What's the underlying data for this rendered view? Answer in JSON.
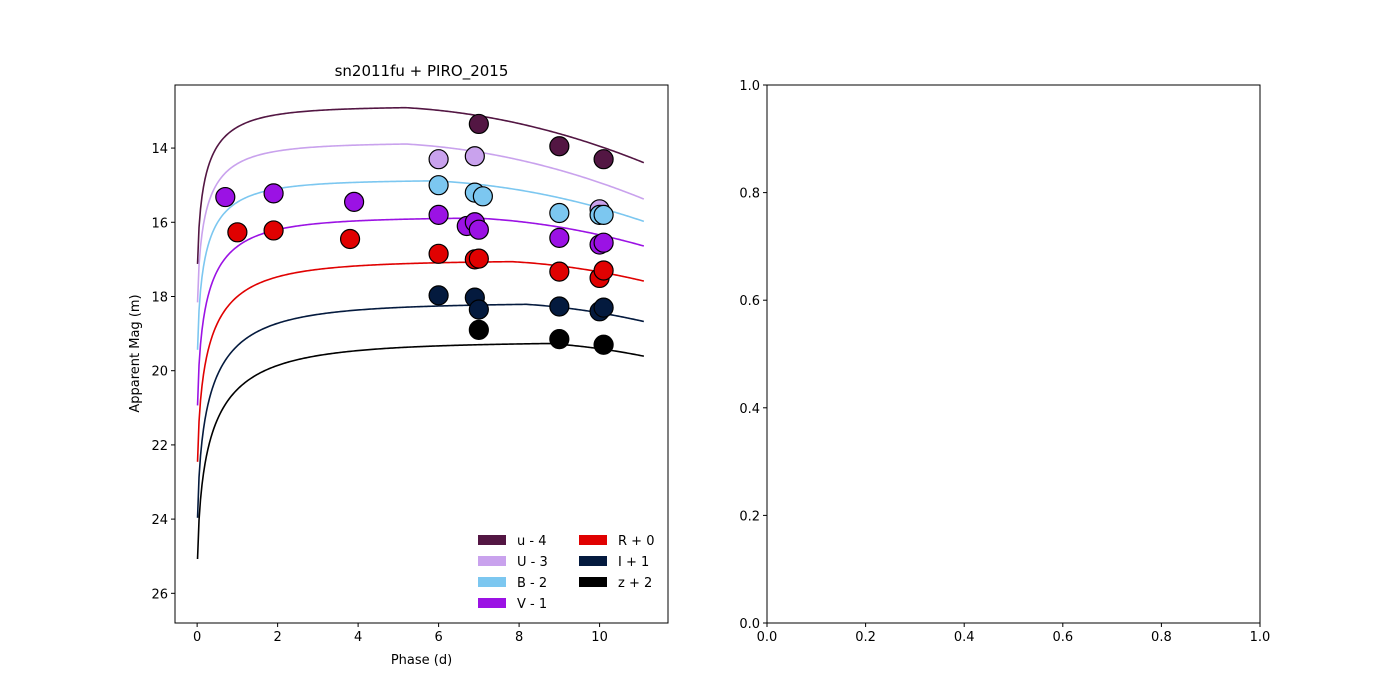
{
  "chart_data": [
    {
      "type": "scatter",
      "title": "sn2011fu + PIRO_2015",
      "xlabel": "Phase (d)",
      "ylabel": "Apparent Mag (m)",
      "xlim": [
        -0.55,
        11.7
      ],
      "ylim": [
        26.8,
        12.3
      ],
      "y_inverted": true,
      "xticks": [
        0,
        2,
        4,
        6,
        8,
        10
      ],
      "yticks": [
        14,
        16,
        18,
        20,
        22,
        24,
        26
      ],
      "legend_placement": "lower right",
      "legend_columns": 2,
      "series": [
        {
          "name": "u - 4",
          "color": "#531643",
          "points": [
            [
              7.0,
              13.35
            ],
            [
              9.0,
              13.95
            ],
            [
              10.1,
              14.3
            ]
          ],
          "model": {
            "m0": 18.2,
            "mpeak": 12.88,
            "tpeak": 4.2,
            "rise": 0.5,
            "decline": 0.053
          }
        },
        {
          "name": "U - 3",
          "color": "#c9a2ed",
          "points": [
            [
              6.0,
              14.3
            ],
            [
              6.9,
              14.22
            ],
            [
              10.0,
              15.65
            ]
          ],
          "model": {
            "m0": 19.25,
            "mpeak": 13.86,
            "tpeak": 4.2,
            "rise": 0.5,
            "decline": 0.053
          }
        },
        {
          "name": "B - 2",
          "color": "#7cc7f0",
          "points": [
            [
              6.0,
              15.0
            ],
            [
              6.9,
              15.2
            ],
            [
              7.1,
              15.3
            ],
            [
              9.0,
              15.75
            ],
            [
              10.0,
              15.8
            ],
            [
              10.1,
              15.8
            ]
          ],
          "model": {
            "m0": 20.6,
            "mpeak": 14.86,
            "tpeak": 5.0,
            "rise": 0.5,
            "decline": 0.05
          }
        },
        {
          "name": "V - 1",
          "color": "#9b12e4",
          "points": [
            [
              0.7,
              15.32
            ],
            [
              1.9,
              15.22
            ],
            [
              3.9,
              15.45
            ],
            [
              6.0,
              15.8
            ],
            [
              6.7,
              16.1
            ],
            [
              6.9,
              16.0
            ],
            [
              7.0,
              16.2
            ],
            [
              9.0,
              16.42
            ],
            [
              10.0,
              16.6
            ],
            [
              10.1,
              16.55
            ]
          ],
          "model": {
            "m0": 22.1,
            "mpeak": 15.86,
            "tpeak": 6.0,
            "rise": 0.6,
            "decline": 0.05
          }
        },
        {
          "name": "R + 0",
          "color": "#e00101",
          "points": [
            [
              1.0,
              16.27
            ],
            [
              1.9,
              16.22
            ],
            [
              3.8,
              16.45
            ],
            [
              6.0,
              16.85
            ],
            [
              6.9,
              17.0
            ],
            [
              7.0,
              16.98
            ],
            [
              9.0,
              17.33
            ],
            [
              10.0,
              17.5
            ],
            [
              10.1,
              17.3
            ]
          ],
          "model": {
            "m0": 23.6,
            "mpeak": 17.03,
            "tpeak": 6.8,
            "rise": 0.7,
            "decline": 0.05
          }
        },
        {
          "name": "I + 1",
          "color": "#041a3e",
          "points": [
            [
              6.0,
              17.97
            ],
            [
              6.9,
              18.03
            ],
            [
              7.0,
              18.35
            ],
            [
              9.0,
              18.27
            ],
            [
              10.0,
              18.4
            ],
            [
              10.1,
              18.3
            ]
          ],
          "model": {
            "m0": 25.1,
            "mpeak": 18.17,
            "tpeak": 7.0,
            "rise": 0.8,
            "decline": 0.05
          }
        },
        {
          "name": "z + 2",
          "color": "#000000",
          "points": [
            [
              7.0,
              18.9
            ],
            [
              9.0,
              19.15
            ],
            [
              10.1,
              19.3
            ]
          ],
          "model": {
            "m0": 26.15,
            "mpeak": 19.22,
            "tpeak": 7.5,
            "rise": 0.9,
            "decline": 0.05
          }
        }
      ]
    },
    {
      "type": "scatter",
      "title": "",
      "xlim": [
        0.0,
        1.0
      ],
      "ylim": [
        0.0,
        1.0
      ],
      "xticks": [
        "0.0",
        "0.2",
        "0.4",
        "0.6",
        "0.8",
        "1.0"
      ],
      "yticks": [
        "0.0",
        "0.2",
        "0.4",
        "0.6",
        "0.8",
        "1.0"
      ],
      "series": []
    }
  ]
}
